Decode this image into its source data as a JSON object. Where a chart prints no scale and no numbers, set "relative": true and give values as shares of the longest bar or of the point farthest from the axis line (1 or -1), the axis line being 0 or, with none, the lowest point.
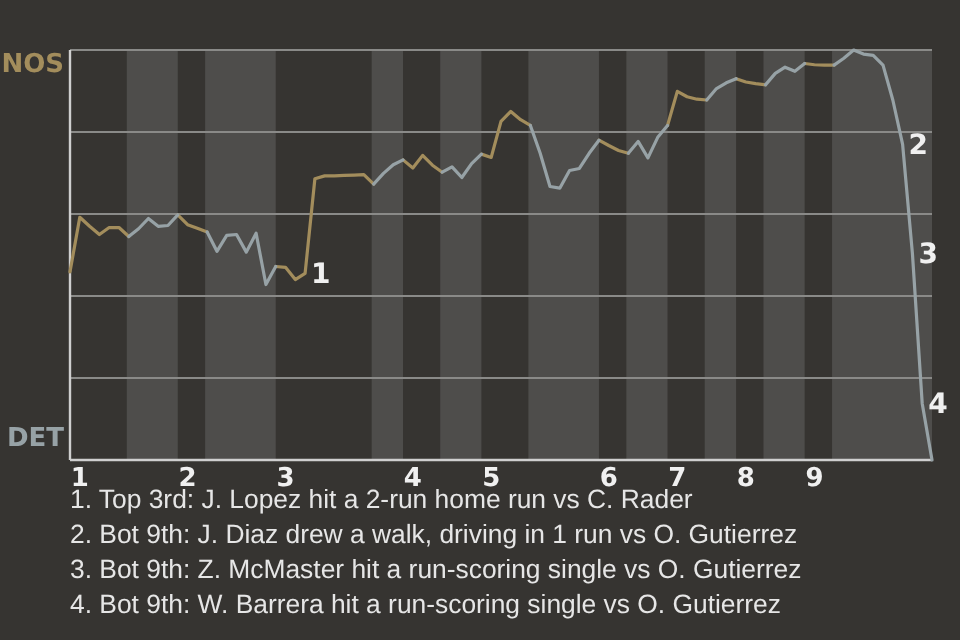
{
  "chart_data": {
    "type": "line",
    "relative": true,
    "categories": [
      null,
      "1",
      null,
      null,
      null,
      null,
      null,
      null,
      null,
      null,
      null,
      null,
      "2",
      null,
      null,
      null,
      null,
      null,
      null,
      null,
      null,
      null,
      "3",
      null,
      null,
      null,
      null,
      null,
      null,
      null,
      null,
      null,
      null,
      null,
      null,
      "4",
      null,
      null,
      null,
      null,
      null,
      null,
      null,
      "5",
      null,
      null,
      null,
      null,
      null,
      null,
      null,
      null,
      null,
      null,
      null,
      "6",
      null,
      null,
      null,
      null,
      null,
      null,
      "7",
      null,
      null,
      null,
      null,
      null,
      null,
      "8",
      null,
      null,
      null,
      null,
      null,
      null,
      "9",
      null,
      null,
      null,
      null,
      null,
      null,
      null,
      null,
      null,
      null,
      null,
      null
    ],
    "grid": "y",
    "legend": "left",
    "marker": "none",
    "line_style": "solid",
    "series": [
      {
        "name": "NOS",
        "color": "#a38d5c",
        "values": [
          0.459,
          0.592,
          0.57,
          0.55,
          0.567,
          0.567,
          0.545,
          null,
          null,
          null,
          null,
          0.598,
          0.574,
          0.565,
          0.556,
          null,
          null,
          null,
          null,
          null,
          null,
          0.472,
          0.47,
          0.44,
          0.455,
          0.686,
          0.693,
          0.693,
          0.694,
          0.695,
          0.696,
          0.673,
          null,
          null,
          0.732,
          0.712,
          0.743,
          0.719,
          0.702,
          null,
          null,
          null,
          0.746,
          0.738,
          0.826,
          0.85,
          0.83,
          0.816,
          null,
          null,
          null,
          null,
          null,
          null,
          0.78,
          0.767,
          0.755,
          0.748,
          null,
          null,
          null,
          0.816,
          0.899,
          0.886,
          0.88,
          0.878,
          null,
          null,
          0.93,
          0.922,
          0.918,
          0.915,
          null,
          null,
          null,
          0.967,
          0.964,
          0.963,
          0.963,
          null,
          null,
          null,
          null,
          null,
          null,
          null,
          null,
          null,
          null
        ]
      },
      {
        "name": "DET",
        "color": "#97a2a6",
        "values": [
          null,
          null,
          null,
          null,
          null,
          null,
          0.545,
          0.564,
          0.589,
          0.57,
          0.572,
          0.598,
          null,
          null,
          0.556,
          0.509,
          0.548,
          0.55,
          0.507,
          0.553,
          0.428,
          0.472,
          null,
          null,
          null,
          null,
          null,
          null,
          null,
          null,
          null,
          0.673,
          0.699,
          0.72,
          0.732,
          null,
          null,
          null,
          0.702,
          0.715,
          0.689,
          0.723,
          0.746,
          null,
          null,
          null,
          null,
          0.816,
          0.748,
          0.667,
          0.663,
          0.706,
          0.711,
          0.748,
          0.78,
          null,
          null,
          0.748,
          0.777,
          0.737,
          0.787,
          0.816,
          null,
          null,
          null,
          0.878,
          0.906,
          0.92,
          0.93,
          null,
          null,
          0.915,
          0.943,
          0.958,
          0.948,
          0.967,
          null,
          null,
          0.963,
          0.98,
          1,
          0.99,
          0.987,
          0.963,
          0.878,
          0.77,
          0.504,
          0.138,
          0
        ]
      }
    ],
    "annotations": [
      "1",
      "2",
      "3",
      "4",
      "1. Top 3rd: J. Lopez hit a 2-run home run vs C. Rader",
      "2. Bot 9th: J. Diaz drew a walk, driving in 1 run vs O. Gutierrez",
      "3. Bot 9th: Z. McMaster hit a run-scoring single vs O. Gutierrez",
      "4. Bot 9th: W. Barrera hit a run-scoring single vs O. Gutierrez"
    ]
  }
}
